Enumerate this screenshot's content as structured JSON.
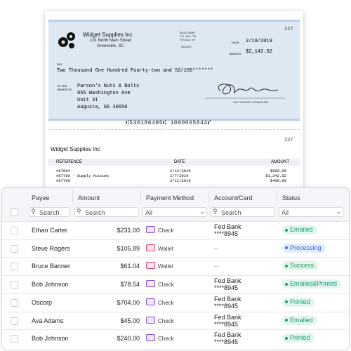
{
  "check": {
    "number": "227",
    "company": "Widget Supplies Inc",
    "address": [
      "101 North Main Street",
      "Greenville, SC"
    ],
    "bank": [
      "BBAT BANK",
      "P.O. Box 778",
      "ITHACA, NY",
      "633/400"
    ],
    "date_label": "DATE:",
    "date": "2/18/2019",
    "amount_label": "AMOUNT:",
    "amount": "$2,142.52",
    "pay_label": "PAY",
    "amount_words": "Two Thousand One Hundred Fourty-two and 52/100*******",
    "order_label": [
      "TO THE",
      "ORDER OF"
    ],
    "payee": [
      "Parson's Nuts & Bolts",
      "855 Washington Ave",
      "Unit 31",
      "Augusta, GA 30056"
    ],
    "signature_label": "AUTHORIZED SIGNATURE",
    "micr": "⑆530186495⑆ 1000065842⑈"
  },
  "stub": {
    "number": "227",
    "company": "Widget Supplies Inc",
    "headers": [
      "REFERENCE",
      "DATE",
      "AMOUNT"
    ],
    "rows": [
      [
        "#87664",
        "2/12/2019",
        "$500.00"
      ],
      [
        "#87760 - Supply Account",
        "2/7/2019",
        "$1,242.52"
      ],
      [
        "#87705",
        "2/11/2019",
        "$400.00"
      ]
    ]
  },
  "table": {
    "headers": [
      "Payee",
      "Amount",
      "Payment Method",
      "Account/Card",
      "Status"
    ],
    "filters": [
      "Search",
      "Search",
      "All",
      "Search",
      "All"
    ],
    "rows": [
      [
        "Ethan Carter",
        "$231.00",
        "Check",
        [
          "Fed Bank",
          "****8945"
        ],
        "Emailed"
      ],
      [
        "Steve Rogers",
        "$105.89",
        "Wallet",
        [
          "--"
        ],
        "Processing"
      ],
      [
        "Bruce Banner",
        "$61.04",
        "Wallet",
        [
          "--"
        ],
        "Success"
      ],
      [
        "Bob Johnson",
        "$78.54",
        "Check",
        [
          "Fed Bank",
          "****8945"
        ],
        "Emailed&Printed"
      ],
      [
        "Oscorp",
        "$704.00",
        "Check",
        [
          "Fed Bank",
          "****8945"
        ],
        "Printed"
      ],
      [
        "Ava Adams",
        "$45.00",
        "Check",
        [
          "Fed Bank",
          "****8945"
        ],
        "Emailed"
      ],
      [
        "Bob Johnson",
        "$240.00",
        "Check",
        [
          "Fed Bank",
          "****8945"
        ],
        "Printed"
      ]
    ]
  }
}
